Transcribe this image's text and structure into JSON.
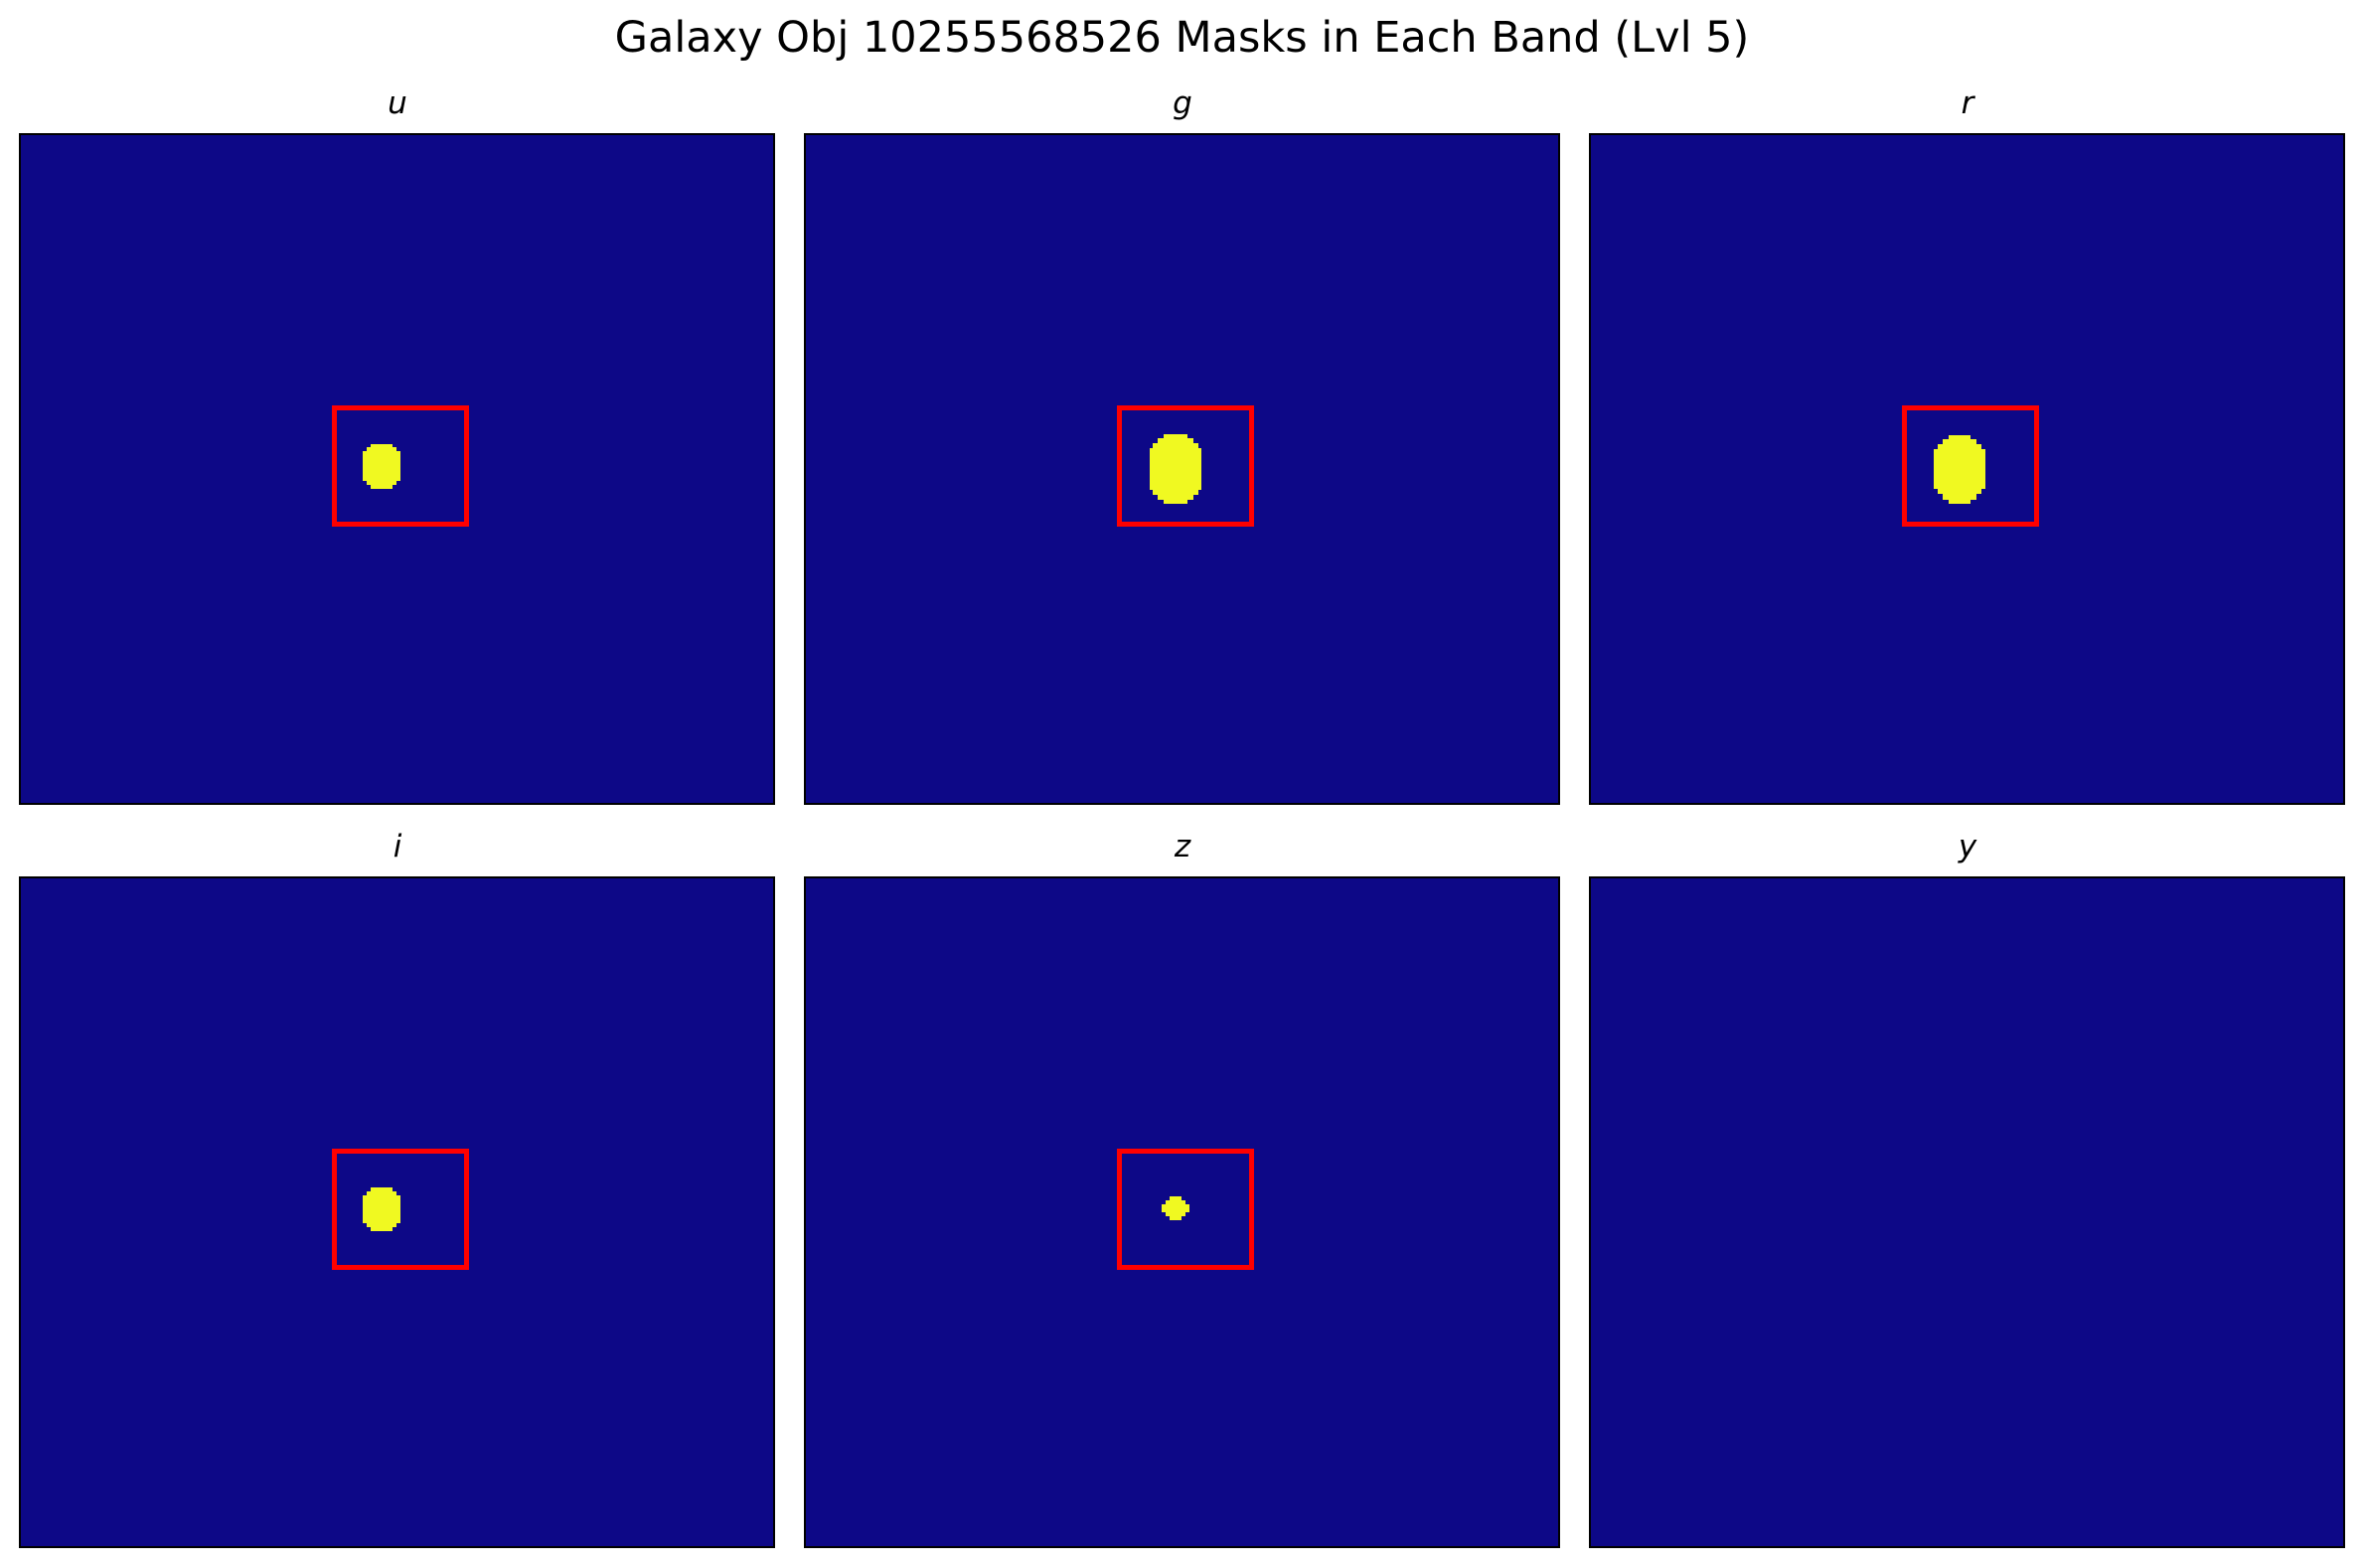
{
  "figure": {
    "title": "Galaxy Obj 10255568526 Masks in Each Band (Lvl 5)",
    "colors": {
      "background": "#0d0887",
      "mask": "#f0f921",
      "box": "#ff0000"
    }
  },
  "panels": [
    {
      "band": "u",
      "has_box": true,
      "has_mask": true,
      "mask_size": "medium"
    },
    {
      "band": "g",
      "has_box": true,
      "has_mask": true,
      "mask_size": "large"
    },
    {
      "band": "r",
      "has_box": true,
      "has_mask": true,
      "mask_size": "large"
    },
    {
      "band": "i",
      "has_box": true,
      "has_mask": true,
      "mask_size": "medium"
    },
    {
      "band": "z",
      "has_box": true,
      "has_mask": true,
      "mask_size": "small"
    },
    {
      "band": "y",
      "has_box": false,
      "has_mask": false,
      "mask_size": "none"
    }
  ]
}
